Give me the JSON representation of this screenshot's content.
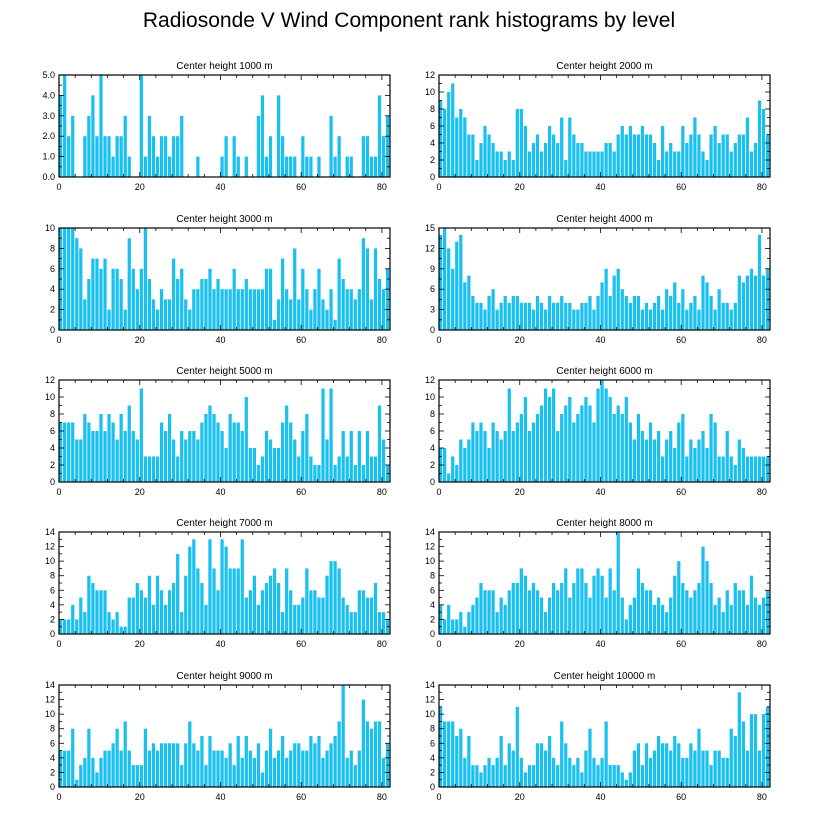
{
  "title": "Radiosonde V Wind Component rank histograms by level",
  "bar_color": "#1ac0f0",
  "chart_data": [
    {
      "type": "bar",
      "title": "Center height 1000 m",
      "ylim": [
        0,
        5
      ],
      "yticks": [
        "0.0",
        "1.0",
        "2.0",
        "3.0",
        "4.0",
        "5.0"
      ],
      "xticks": [
        "0",
        "20",
        "40",
        "60",
        "80"
      ],
      "values": [
        4,
        5,
        2,
        3,
        0,
        0,
        2,
        3,
        4,
        2,
        5,
        2,
        2,
        1,
        2,
        2,
        3,
        1,
        0,
        0,
        5,
        1,
        3,
        2,
        1,
        2,
        2,
        1,
        2,
        2,
        3,
        0,
        0,
        0,
        1,
        0,
        0,
        0,
        0,
        0,
        1,
        2,
        0,
        2,
        1,
        0,
        1,
        0,
        0,
        3,
        4,
        1,
        2,
        0,
        4,
        2,
        1,
        1,
        1,
        0,
        2,
        1,
        1,
        0,
        1,
        0,
        0,
        3,
        1,
        2,
        0,
        1,
        1,
        0,
        0,
        2,
        2,
        1,
        1,
        4,
        2,
        3
      ]
    },
    {
      "type": "bar",
      "title": "Center height 2000 m",
      "ylim": [
        0,
        12
      ],
      "yticks": [
        "0",
        "2",
        "4",
        "6",
        "8",
        "10",
        "12"
      ],
      "xticks": [
        "0",
        "20",
        "40",
        "60",
        "80"
      ],
      "values": [
        9,
        8,
        10,
        11,
        7,
        8,
        7,
        5,
        5,
        2,
        4,
        6,
        5,
        4,
        3,
        3,
        2,
        3,
        2,
        8,
        8,
        6,
        3,
        4,
        5,
        3,
        4,
        6,
        5,
        4,
        7,
        2,
        7,
        5,
        4,
        4,
        3,
        3,
        3,
        3,
        3,
        4,
        4,
        3,
        5,
        6,
        5,
        6,
        5,
        5,
        6,
        5,
        5,
        4,
        2,
        6,
        3,
        4,
        3,
        3,
        6,
        4,
        5,
        7,
        5,
        3,
        2,
        5,
        6,
        4,
        5,
        5,
        3,
        4,
        5,
        5,
        7,
        3,
        4,
        9,
        8,
        5
      ]
    },
    {
      "type": "bar",
      "title": "Center height 3000 m",
      "ylim": [
        0,
        10
      ],
      "yticks": [
        "0",
        "2",
        "4",
        "6",
        "8",
        "10"
      ],
      "xticks": [
        "0",
        "20",
        "40",
        "60",
        "80"
      ],
      "values": [
        10,
        10,
        10,
        10,
        9,
        8,
        3,
        5,
        7,
        7,
        6,
        7,
        2,
        6,
        6,
        5,
        2,
        9,
        6,
        4,
        6,
        10,
        5,
        3,
        2,
        4,
        3,
        3,
        7,
        5,
        6,
        3,
        2,
        4,
        4,
        5,
        5,
        6,
        4,
        5,
        4,
        4,
        4,
        6,
        4,
        4,
        5,
        4,
        4,
        4,
        4,
        6,
        6,
        1,
        3,
        7,
        4,
        3,
        8,
        3,
        6,
        4,
        2,
        4,
        6,
        3,
        2,
        4,
        1,
        7,
        5,
        4,
        4,
        3,
        4,
        9,
        8,
        3,
        8,
        5,
        4,
        6
      ]
    },
    {
      "type": "bar",
      "title": "Center height 4000 m",
      "ylim": [
        0,
        15
      ],
      "yticks": [
        "0",
        "3",
        "6",
        "9",
        "12",
        "15"
      ],
      "xticks": [
        "0",
        "20",
        "40",
        "60",
        "80"
      ],
      "values": [
        14,
        15,
        12,
        9,
        13,
        14,
        7,
        8,
        5,
        4,
        4,
        3,
        5,
        6,
        3,
        4,
        5,
        4,
        5,
        5,
        4,
        4,
        4,
        3,
        5,
        4,
        3,
        5,
        4,
        4,
        5,
        4,
        4,
        3,
        3,
        4,
        4,
        5,
        3,
        5,
        7,
        9,
        5,
        8,
        9,
        6,
        5,
        4,
        5,
        5,
        3,
        4,
        3,
        4,
        5,
        3,
        6,
        5,
        7,
        4,
        6,
        3,
        4,
        5,
        3,
        8,
        7,
        5,
        3,
        6,
        4,
        4,
        3,
        4,
        8,
        7,
        8,
        9,
        8,
        14,
        8,
        9
      ]
    },
    {
      "type": "bar",
      "title": "Center height 5000 m",
      "ylim": [
        0,
        12
      ],
      "yticks": [
        "0",
        "2",
        "4",
        "6",
        "8",
        "10",
        "12"
      ],
      "xticks": [
        "0",
        "20",
        "40",
        "60",
        "80"
      ],
      "values": [
        7,
        7,
        7,
        7,
        5,
        5,
        8,
        7,
        6,
        6,
        8,
        6,
        8,
        7,
        5,
        8,
        6,
        9,
        6,
        5,
        11,
        3,
        3,
        3,
        3,
        7,
        6,
        8,
        5,
        3,
        6,
        5,
        6,
        6,
        5,
        7,
        8,
        9,
        8,
        7,
        6,
        4,
        8,
        7,
        7,
        6,
        10,
        4,
        4,
        2,
        3,
        6,
        5,
        4,
        4,
        7,
        9,
        7,
        5,
        3,
        6,
        8,
        3,
        2,
        2,
        11,
        5,
        11,
        2,
        3,
        6,
        3,
        6,
        2,
        6,
        2,
        6,
        3,
        3,
        9,
        5,
        2
      ]
    },
    {
      "type": "bar",
      "title": "Center height 6000 m",
      "ylim": [
        0,
        12
      ],
      "yticks": [
        "0",
        "2",
        "4",
        "6",
        "8",
        "10",
        "12"
      ],
      "xticks": [
        "0",
        "20",
        "40",
        "60",
        "80"
      ],
      "values": [
        4,
        4,
        1,
        3,
        2,
        5,
        4,
        5,
        7,
        6,
        7,
        6,
        4,
        7,
        6,
        5,
        6,
        11,
        6,
        7,
        8,
        10,
        6,
        7,
        8,
        9,
        11,
        10,
        11,
        6,
        8,
        9,
        10,
        7,
        8,
        9,
        10,
        9,
        7,
        11,
        12,
        11,
        10,
        8,
        9,
        8,
        10,
        7,
        5,
        8,
        6,
        5,
        7,
        5,
        6,
        3,
        5,
        6,
        4,
        7,
        8,
        3,
        5,
        4,
        5,
        6,
        4,
        8,
        7,
        3,
        3,
        6,
        3,
        2,
        5,
        4,
        3,
        3,
        3,
        3,
        3,
        3
      ]
    },
    {
      "type": "bar",
      "title": "Center height 7000 m",
      "ylim": [
        0,
        14
      ],
      "yticks": [
        "0",
        "2",
        "4",
        "6",
        "8",
        "10",
        "12",
        "14"
      ],
      "xticks": [
        "0",
        "20",
        "40",
        "60",
        "80"
      ],
      "values": [
        2,
        2,
        2,
        4,
        2,
        5,
        3,
        8,
        7,
        6,
        6,
        6,
        3,
        2,
        3,
        1,
        1,
        5,
        5,
        7,
        6,
        5,
        8,
        4,
        8,
        6,
        4,
        6,
        7,
        11,
        3,
        8,
        12,
        13,
        9,
        7,
        4,
        13,
        9,
        6,
        13,
        12,
        9,
        9,
        9,
        13,
        5,
        6,
        8,
        4,
        6,
        7,
        8,
        9,
        7,
        3,
        9,
        6,
        4,
        4,
        5,
        9,
        6,
        6,
        5,
        5,
        8,
        10,
        10,
        9,
        5,
        4,
        3,
        3,
        6,
        6,
        5,
        5,
        7,
        3,
        3,
        2
      ]
    },
    {
      "type": "bar",
      "title": "Center height 8000 m",
      "ylim": [
        0,
        14
      ],
      "yticks": [
        "0",
        "2",
        "4",
        "6",
        "8",
        "10",
        "12",
        "14"
      ],
      "xticks": [
        "0",
        "20",
        "40",
        "60",
        "80"
      ],
      "values": [
        4,
        2,
        4,
        2,
        2,
        3,
        1,
        3,
        4,
        5,
        7,
        6,
        6,
        6,
        3,
        5,
        4,
        6,
        7,
        7,
        9,
        8,
        6,
        7,
        6,
        5,
        3,
        5,
        7,
        6,
        7,
        9,
        5,
        7,
        9,
        9,
        7,
        5,
        8,
        9,
        8,
        5,
        9,
        6,
        14,
        5,
        2,
        4,
        5,
        9,
        7,
        6,
        6,
        4,
        5,
        4,
        3,
        5,
        8,
        10,
        7,
        6,
        5,
        6,
        7,
        12,
        10,
        7,
        4,
        5,
        3,
        6,
        4,
        7,
        6,
        6,
        4,
        8,
        5,
        4,
        5,
        6
      ]
    },
    {
      "type": "bar",
      "title": "Center height 9000 m",
      "ylim": [
        0,
        14
      ],
      "yticks": [
        "0",
        "2",
        "4",
        "6",
        "8",
        "10",
        "12",
        "14"
      ],
      "xticks": [
        "0",
        "20",
        "40",
        "60",
        "80"
      ],
      "values": [
        5,
        5,
        5,
        8,
        1,
        3,
        4,
        8,
        4,
        2,
        4,
        5,
        5,
        6,
        8,
        5,
        9,
        5,
        3,
        3,
        3,
        8,
        5,
        6,
        5,
        6,
        6,
        6,
        6,
        6,
        3,
        6,
        9,
        6,
        5,
        7,
        3,
        7,
        5,
        5,
        5,
        4,
        6,
        3,
        7,
        4,
        7,
        5,
        4,
        6,
        2,
        5,
        8,
        4,
        5,
        7,
        4,
        5,
        6,
        6,
        5,
        5,
        7,
        6,
        7,
        4,
        5,
        6,
        7,
        9,
        14,
        4,
        5,
        3,
        5,
        12,
        9,
        8,
        9,
        9,
        4,
        6
      ]
    },
    {
      "type": "bar",
      "title": "Center height 10000 m",
      "ylim": [
        0,
        14
      ],
      "yticks": [
        "0",
        "2",
        "4",
        "6",
        "8",
        "10",
        "12",
        "14"
      ],
      "xticks": [
        "0",
        "20",
        "40",
        "60",
        "80"
      ],
      "values": [
        11,
        9,
        9,
        9,
        7,
        8,
        4,
        7,
        3,
        3,
        2,
        3,
        4,
        3,
        4,
        7,
        3,
        6,
        5,
        11,
        4,
        2,
        3,
        3,
        6,
        6,
        5,
        7,
        4,
        3,
        9,
        6,
        4,
        3,
        4,
        2,
        5,
        8,
        4,
        3,
        4,
        9,
        3,
        3,
        3,
        2,
        1,
        2,
        5,
        6,
        3,
        6,
        4,
        5,
        7,
        6,
        6,
        5,
        7,
        6,
        4,
        4,
        6,
        5,
        8,
        5,
        5,
        3,
        5,
        5,
        4,
        4,
        8,
        7,
        13,
        9,
        5,
        10,
        10,
        5,
        10,
        11
      ]
    }
  ]
}
